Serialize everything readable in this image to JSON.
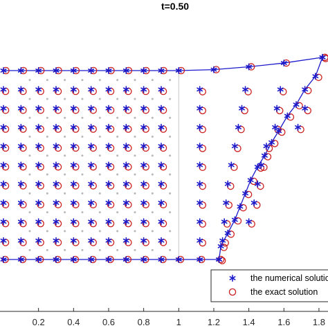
{
  "chart_data": {
    "type": "scatter",
    "title": "t=0.50",
    "xlabel": "",
    "ylabel": "",
    "xlim": [
      -0.05,
      1.83
    ],
    "ylim": [
      -0.05,
      1.45
    ],
    "x_ticks": [
      0.2,
      0.4,
      0.6,
      0.8,
      1,
      1.2,
      1.4,
      1.6,
      1.8
    ],
    "x_tick_labels": [
      "0.2",
      "0.4",
      "0.6",
      "0.8",
      "1",
      "1.2",
      "1.4",
      "1.6",
      "1.8"
    ],
    "grid": false,
    "legend_position": "bottom-right",
    "colors": {
      "numerical": "#1a1acc",
      "exact": "#cc1f1f",
      "background_points": "#b8b8b8",
      "divider": "#c8c8c8"
    },
    "series": [
      {
        "name": "the numerical solution",
        "marker": "asterisk",
        "line": true
      },
      {
        "name": "the exact solution",
        "marker": "circle",
        "line": false
      }
    ],
    "boundary_top": [
      [
        0.0,
        1.0
      ],
      [
        0.1,
        1.0
      ],
      [
        0.2,
        1.0
      ],
      [
        0.3,
        1.0
      ],
      [
        0.4,
        1.0
      ],
      [
        0.5,
        1.0
      ],
      [
        0.6,
        1.0
      ],
      [
        0.7,
        1.0
      ],
      [
        0.8,
        1.0
      ],
      [
        0.9,
        1.0
      ],
      [
        1.0,
        1.0
      ],
      [
        1.2,
        1.005
      ],
      [
        1.4,
        1.02
      ],
      [
        1.6,
        1.04
      ],
      [
        1.82,
        1.07
      ]
    ],
    "boundary_right": [
      [
        1.82,
        1.07
      ],
      [
        1.78,
        0.97
      ],
      [
        1.72,
        0.9
      ],
      [
        1.67,
        0.82
      ],
      [
        1.62,
        0.76
      ],
      [
        1.57,
        0.68
      ],
      [
        1.53,
        0.62
      ],
      [
        1.49,
        0.55
      ],
      [
        1.45,
        0.49
      ],
      [
        1.41,
        0.42
      ],
      [
        1.38,
        0.35
      ],
      [
        1.35,
        0.28
      ],
      [
        1.32,
        0.21
      ],
      [
        1.28,
        0.14
      ],
      [
        1.24,
        0.07
      ],
      [
        1.23,
        0.0
      ]
    ],
    "boundary_bottom": [
      [
        0.0,
        0.0
      ],
      [
        0.1,
        0.0
      ],
      [
        0.2,
        0.0
      ],
      [
        0.3,
        0.0
      ],
      [
        0.4,
        0.0
      ],
      [
        0.5,
        0.0
      ],
      [
        0.6,
        0.0
      ],
      [
        0.7,
        0.0
      ],
      [
        0.8,
        0.0
      ],
      [
        0.9,
        0.0
      ],
      [
        1.0,
        0.0
      ],
      [
        1.12,
        0.0
      ],
      [
        1.23,
        0.0
      ]
    ],
    "interior_rows_y": [
      0.1,
      0.2,
      0.3,
      0.4,
      0.5,
      0.6,
      0.7,
      0.8,
      0.9
    ],
    "interior_rows_x": [
      [
        0.0,
        0.1,
        0.2,
        0.3,
        0.4,
        0.5,
        0.6,
        0.7,
        0.8,
        0.9
      ],
      [
        0.0,
        0.1,
        0.2,
        0.3,
        0.4,
        0.5,
        0.6,
        0.7,
        0.8,
        0.9
      ],
      [
        0.0,
        0.1,
        0.2,
        0.3,
        0.4,
        0.5,
        0.6,
        0.7,
        0.8,
        0.9
      ],
      [
        0.0,
        0.1,
        0.2,
        0.3,
        0.4,
        0.5,
        0.6,
        0.7,
        0.8,
        0.9
      ],
      [
        0.0,
        0.1,
        0.2,
        0.3,
        0.4,
        0.5,
        0.6,
        0.7,
        0.8,
        0.9
      ],
      [
        0.0,
        0.1,
        0.2,
        0.3,
        0.4,
        0.5,
        0.6,
        0.7,
        0.8,
        0.9
      ],
      [
        0.0,
        0.1,
        0.2,
        0.3,
        0.4,
        0.5,
        0.6,
        0.7,
        0.8,
        0.9
      ],
      [
        0.0,
        0.1,
        0.2,
        0.3,
        0.4,
        0.5,
        0.6,
        0.7,
        0.8,
        0.9
      ],
      [
        0.0,
        0.1,
        0.2,
        0.3,
        0.4,
        0.5,
        0.6,
        0.7,
        0.8,
        0.9
      ]
    ],
    "right_region_rows_x": [
      [
        1.12,
        1.25
      ],
      [
        1.12,
        1.26,
        1.4
      ],
      [
        1.12,
        1.27,
        1.43
      ],
      [
        1.12,
        1.28,
        1.45
      ],
      [
        1.12,
        1.3,
        1.47
      ],
      [
        1.12,
        1.32,
        1.5
      ],
      [
        1.12,
        1.34,
        1.55,
        1.68
      ],
      [
        1.12,
        1.36,
        1.56,
        1.72
      ],
      [
        1.12,
        1.38,
        1.58
      ]
    ],
    "background_grid_x": [
      0.15,
      0.25,
      0.35,
      0.45,
      0.55,
      0.65,
      0.75,
      0.85,
      0.95
    ],
    "background_grid_y": [
      0.05,
      0.15,
      0.25,
      0.35,
      0.45,
      0.55,
      0.65,
      0.75,
      0.85,
      0.95
    ]
  }
}
